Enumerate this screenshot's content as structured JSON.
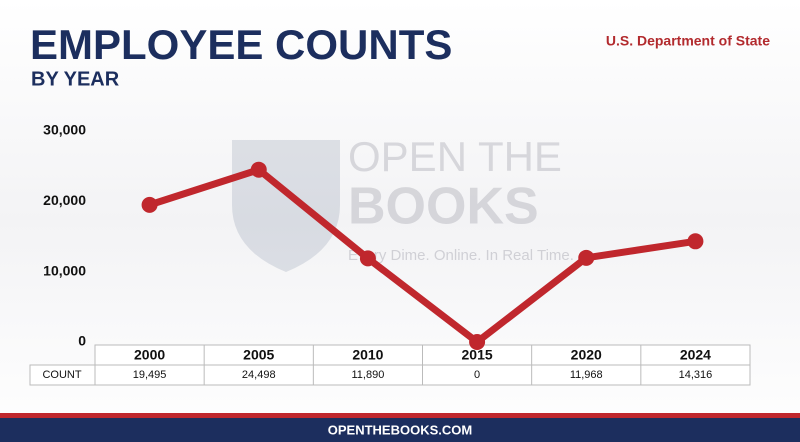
{
  "chart_data": {
    "type": "line",
    "title": "EMPLOYEE COUNTS",
    "subtitle": "BY YEAR",
    "source": "U.S. Department of State",
    "categories": [
      "2000",
      "2005",
      "2010",
      "2015",
      "2020",
      "2024"
    ],
    "row_label": "COUNT",
    "values": [
      19495,
      24498,
      11890,
      0,
      11968,
      14316
    ],
    "value_labels": [
      "19,495",
      "24,498",
      "11,890",
      "0",
      "11,968",
      "14,316"
    ],
    "color": "#c0272d",
    "ylim": [
      0,
      30000
    ],
    "yticks": [
      0,
      {
        "value": 10000,
        "label": "10,000"
      },
      {
        "value": 20000,
        "label": "20,000"
      },
      {
        "value": 30000,
        "label": "30,000"
      }
    ],
    "watermark": [
      "OPEN THE",
      "BOOKS",
      "Every Dime. Online. In Real Time."
    ],
    "footer": "OPENTHEBOOKS.COM"
  }
}
